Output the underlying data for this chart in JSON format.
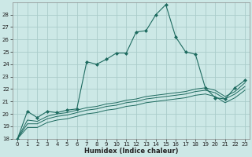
{
  "title": "",
  "xlabel": "Humidex (Indice chaleur)",
  "bg_color": "#cce8e6",
  "grid_color": "#aaccca",
  "line_color": "#1e6b60",
  "marker_color": "#1e6b60",
  "xlim": [
    -0.5,
    23.5
  ],
  "ylim": [
    18,
    29
  ],
  "yticks": [
    18,
    19,
    20,
    21,
    22,
    23,
    24,
    25,
    26,
    27,
    28
  ],
  "xticks": [
    0,
    1,
    2,
    3,
    4,
    5,
    6,
    7,
    8,
    9,
    10,
    11,
    12,
    13,
    14,
    15,
    16,
    17,
    18,
    19,
    20,
    21,
    22,
    23
  ],
  "series1_x": [
    0,
    1,
    2,
    3,
    4,
    5,
    6,
    7,
    8,
    9,
    10,
    11,
    12,
    13,
    14,
    15,
    16,
    17,
    18,
    19,
    20,
    21,
    22,
    23
  ],
  "series1_y": [
    18.0,
    20.2,
    19.7,
    20.2,
    20.1,
    20.3,
    20.4,
    24.2,
    24.0,
    24.4,
    24.9,
    24.9,
    26.6,
    26.7,
    28.0,
    28.8,
    26.2,
    25.0,
    24.8,
    22.1,
    21.3,
    21.2,
    22.1,
    22.7
  ],
  "series2_x": [
    0,
    1,
    2,
    3,
    4,
    5,
    6,
    7,
    8,
    9,
    10,
    11,
    12,
    13,
    14,
    15,
    16,
    17,
    18,
    19,
    20,
    21,
    22,
    23
  ],
  "series2_y": [
    18.0,
    19.5,
    19.4,
    19.8,
    20.0,
    20.1,
    20.3,
    20.5,
    20.6,
    20.8,
    20.9,
    21.1,
    21.2,
    21.4,
    21.5,
    21.6,
    21.7,
    21.8,
    22.0,
    22.1,
    21.9,
    21.4,
    21.8,
    22.5
  ],
  "series3_x": [
    0,
    1,
    2,
    3,
    4,
    5,
    6,
    7,
    8,
    9,
    10,
    11,
    12,
    13,
    14,
    15,
    16,
    17,
    18,
    19,
    20,
    21,
    22,
    23
  ],
  "series3_y": [
    18.0,
    19.2,
    19.2,
    19.6,
    19.8,
    19.9,
    20.1,
    20.3,
    20.4,
    20.6,
    20.7,
    20.9,
    21.0,
    21.2,
    21.3,
    21.4,
    21.5,
    21.6,
    21.8,
    21.9,
    21.7,
    21.2,
    21.6,
    22.2
  ],
  "series4_x": [
    0,
    1,
    2,
    3,
    4,
    5,
    6,
    7,
    8,
    9,
    10,
    11,
    12,
    13,
    14,
    15,
    16,
    17,
    18,
    19,
    20,
    21,
    22,
    23
  ],
  "series4_y": [
    18.0,
    18.9,
    18.9,
    19.3,
    19.5,
    19.6,
    19.8,
    20.0,
    20.1,
    20.3,
    20.4,
    20.6,
    20.7,
    20.9,
    21.0,
    21.1,
    21.2,
    21.3,
    21.5,
    21.6,
    21.4,
    20.9,
    21.3,
    21.9
  ],
  "tick_fontsize": 5,
  "xlabel_fontsize": 6
}
